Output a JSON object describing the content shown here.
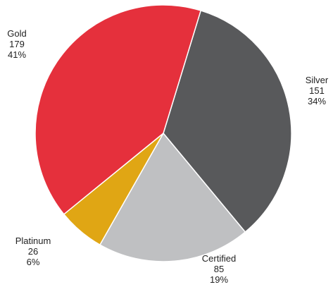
{
  "chart_data": {
    "type": "pie",
    "slices": [
      {
        "name": "Silver",
        "value": 151,
        "percent": "34%",
        "color": "#58595b"
      },
      {
        "name": "Certified",
        "value": 85,
        "percent": "19%",
        "color": "#bfc0c2"
      },
      {
        "name": "Platinum",
        "value": 26,
        "percent": "6%",
        "color": "#e0a614"
      },
      {
        "name": "Gold",
        "value": 179,
        "percent": "41%",
        "color": "#e5303c"
      }
    ],
    "title": "",
    "legend": "none"
  }
}
